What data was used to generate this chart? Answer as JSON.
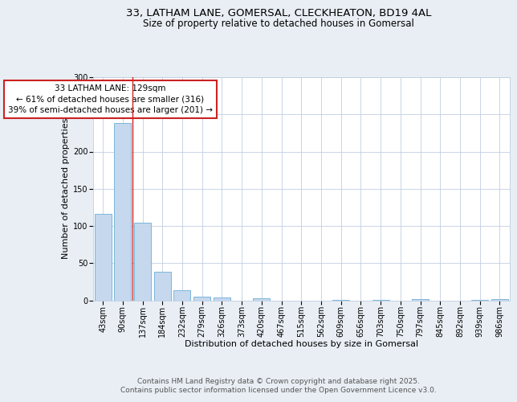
{
  "title_line1": "33, LATHAM LANE, GOMERSAL, CLECKHEATON, BD19 4AL",
  "title_line2": "Size of property relative to detached houses in Gomersal",
  "xlabel": "Distribution of detached houses by size in Gomersal",
  "ylabel": "Number of detached properties",
  "bar_labels": [
    "43sqm",
    "90sqm",
    "137sqm",
    "184sqm",
    "232sqm",
    "279sqm",
    "326sqm",
    "373sqm",
    "420sqm",
    "467sqm",
    "515sqm",
    "562sqm",
    "609sqm",
    "656sqm",
    "703sqm",
    "750sqm",
    "797sqm",
    "845sqm",
    "892sqm",
    "939sqm",
    "986sqm"
  ],
  "bar_values": [
    116,
    238,
    104,
    38,
    13,
    5,
    4,
    0,
    3,
    0,
    0,
    0,
    1,
    0,
    1,
    0,
    2,
    0,
    0,
    1,
    2
  ],
  "bar_color": "#c5d8ee",
  "bar_edgecolor": "#6baed6",
  "ylim": [
    0,
    300
  ],
  "yticks": [
    0,
    50,
    100,
    150,
    200,
    250,
    300
  ],
  "vline_x": 1.5,
  "vline_color": "#cc2222",
  "annotation_text": "33 LATHAM LANE: 129sqm\n← 61% of detached houses are smaller (316)\n39% of semi-detached houses are larger (201) →",
  "annotation_box_color": "white",
  "annotation_edge_color": "#cc2222",
  "footer_line1": "Contains HM Land Registry data © Crown copyright and database right 2025.",
  "footer_line2": "Contains public sector information licensed under the Open Government Licence v3.0.",
  "background_color": "#e8eef4",
  "plot_background": "white",
  "grid_color": "#c0cfe0",
  "title_fontsize": 9.5,
  "subtitle_fontsize": 8.5,
  "axis_label_fontsize": 8,
  "tick_fontsize": 7,
  "annotation_fontsize": 7.5,
  "footer_fontsize": 6.5
}
